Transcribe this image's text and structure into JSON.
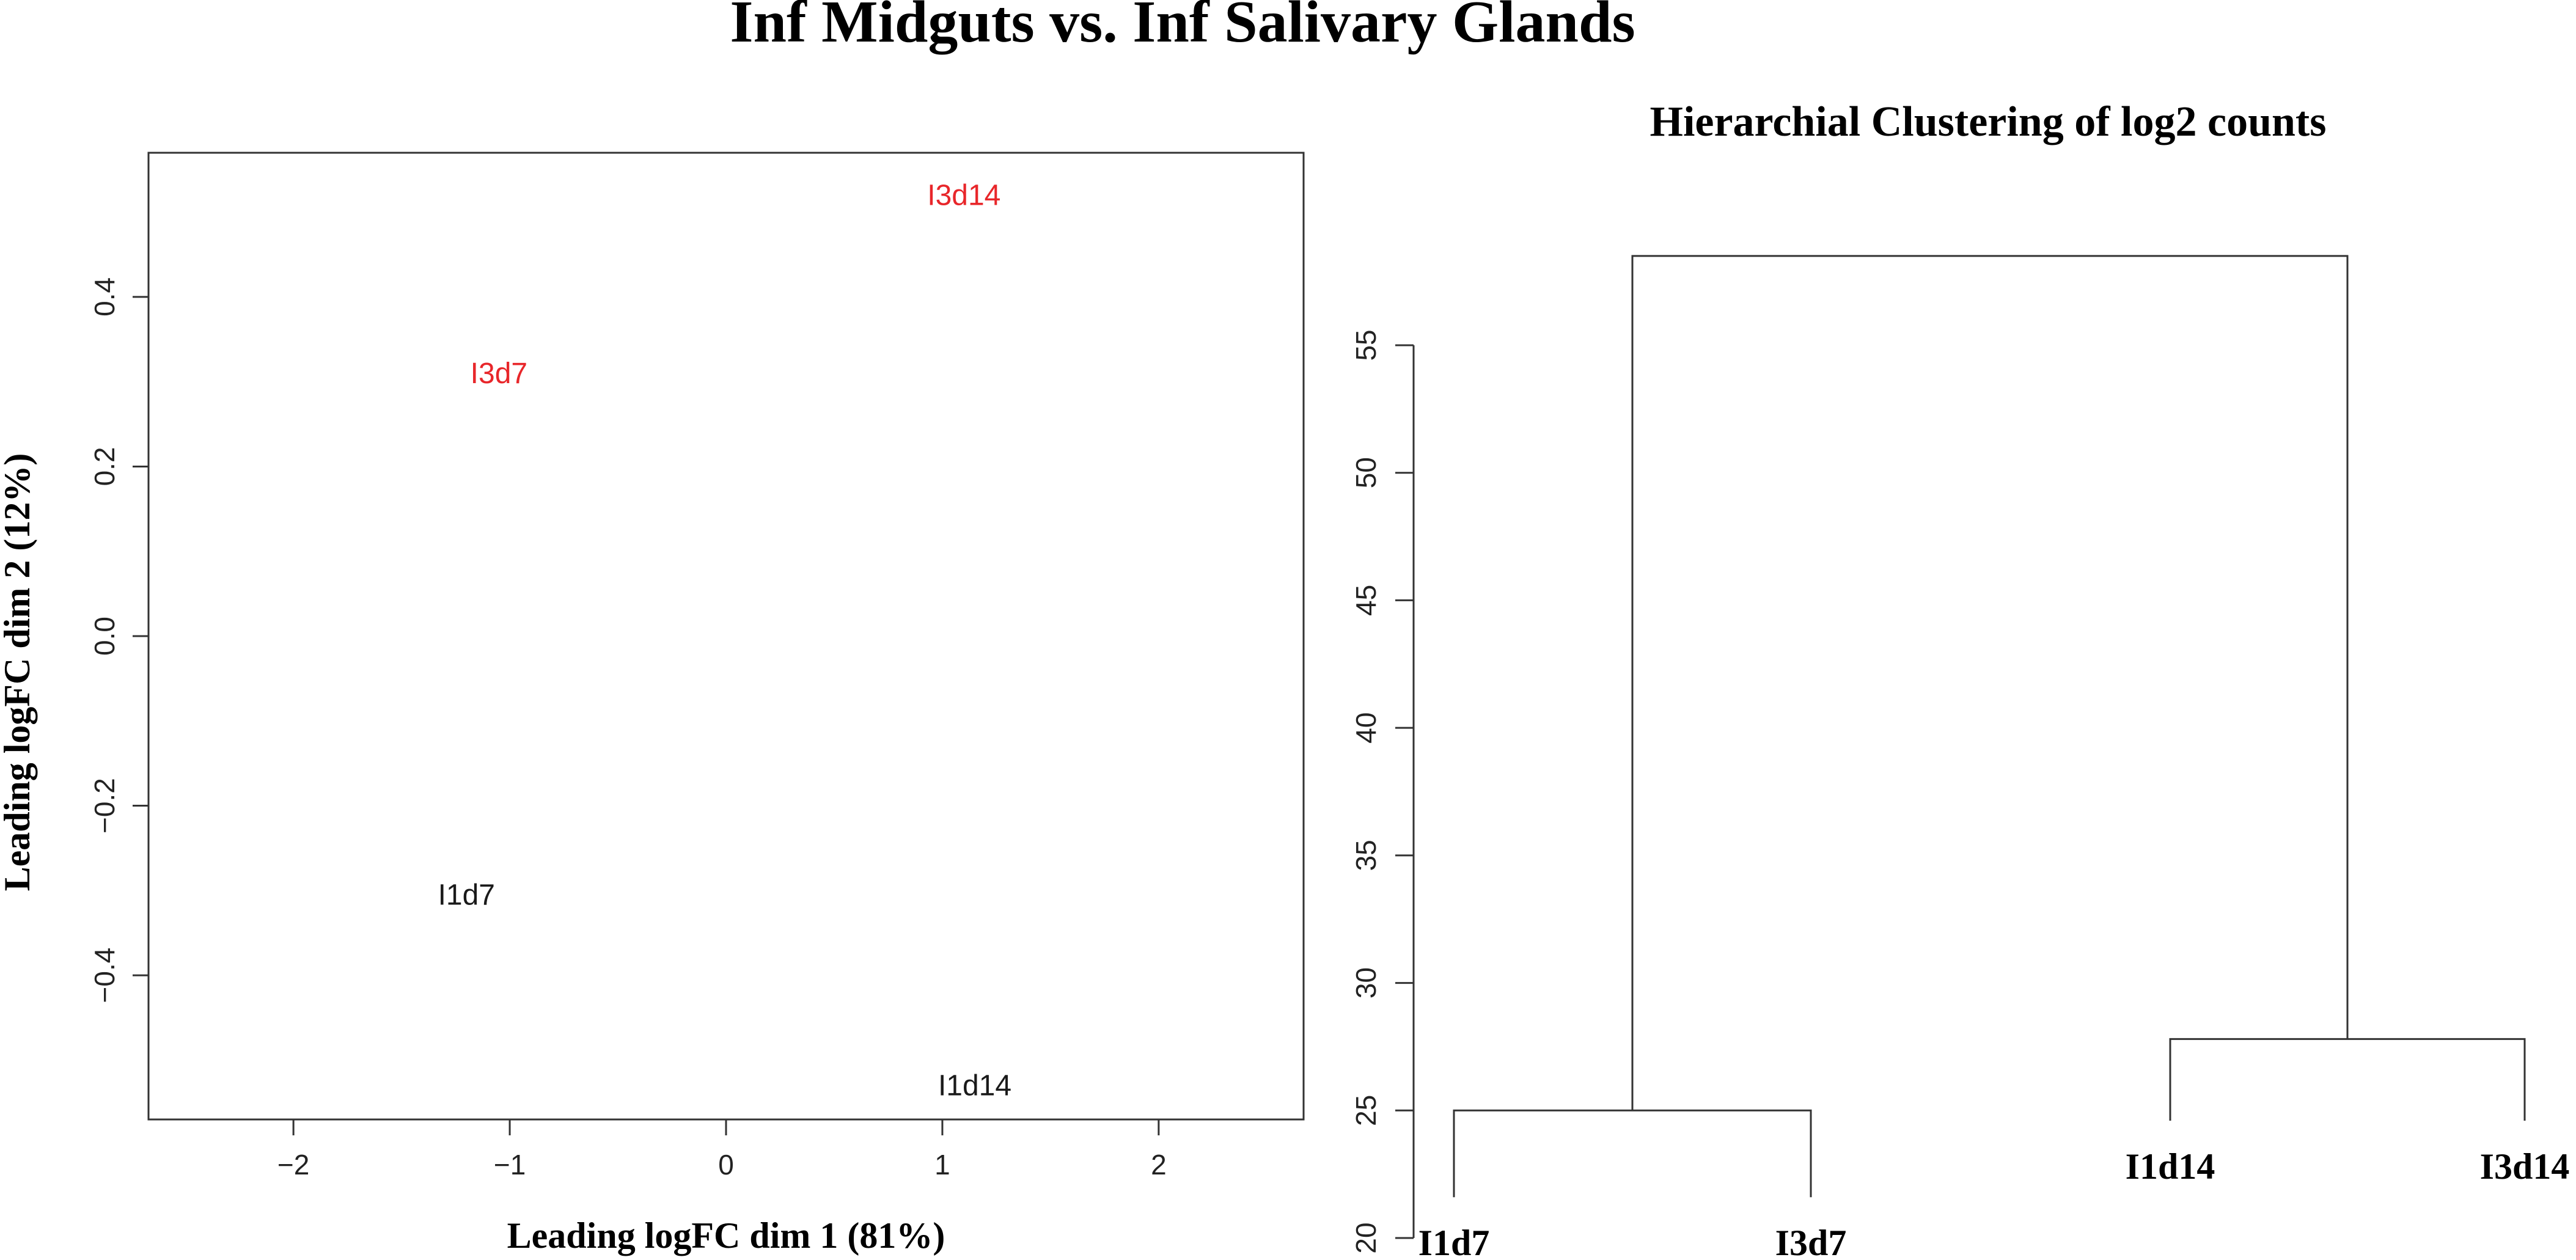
{
  "figure": {
    "title": "Inf Midguts vs. Inf Salivary Glands"
  },
  "chart_data": [
    {
      "type": "scatter",
      "title": "",
      "xlabel": "Leading logFC dim 1 (81%)",
      "ylabel": "Leading logFC dim 2 (12%)",
      "xlim": [
        -2.67,
        2.67
      ],
      "ylim": [
        -0.57,
        0.57
      ],
      "x_ticks": [
        {
          "value": -2,
          "label": "−2"
        },
        {
          "value": -1,
          "label": "−1"
        },
        {
          "value": 0,
          "label": "0"
        },
        {
          "value": 1,
          "label": "1"
        },
        {
          "value": 2,
          "label": "2"
        }
      ],
      "y_ticks": [
        {
          "value": -0.4,
          "label": "−0.4"
        },
        {
          "value": -0.2,
          "label": "−0.2"
        },
        {
          "value": 0.0,
          "label": "0.0"
        },
        {
          "value": 0.2,
          "label": "0.2"
        },
        {
          "value": 0.4,
          "label": "0.4"
        }
      ],
      "points": [
        {
          "label": "I3d14",
          "x": 1.1,
          "y": 0.52,
          "color": "#e8262a"
        },
        {
          "label": "I3d7",
          "x": -1.05,
          "y": 0.31,
          "color": "#e8262a"
        },
        {
          "label": "I1d7",
          "x": -1.2,
          "y": -0.305,
          "color": "#1a1a1a"
        },
        {
          "label": "I1d14",
          "x": 1.15,
          "y": -0.53,
          "color": "#1a1a1a"
        }
      ]
    },
    {
      "type": "dendrogram",
      "title": "Hierarchial Clustering of log2 counts",
      "ylim": [
        20,
        59
      ],
      "y_ticks": [
        {
          "value": 20,
          "label": "20"
        },
        {
          "value": 25,
          "label": "25"
        },
        {
          "value": 30,
          "label": "30"
        },
        {
          "value": 35,
          "label": "35"
        },
        {
          "value": 40,
          "label": "40"
        },
        {
          "value": 45,
          "label": "45"
        },
        {
          "value": 50,
          "label": "50"
        },
        {
          "value": 55,
          "label": "55"
        }
      ],
      "leaves": [
        "I1d7",
        "I3d7",
        "I1d14",
        "I3d14"
      ],
      "leaf_heights": [
        21.6,
        21.6,
        24.6,
        24.6
      ],
      "merges": [
        {
          "left": "I1d7",
          "right": "I3d7",
          "height": 25.0
        },
        {
          "left": "I1d14",
          "right": "I3d14",
          "height": 27.8
        },
        {
          "left": "cluster-1",
          "right": "cluster-2",
          "height": 58.5
        }
      ]
    }
  ]
}
